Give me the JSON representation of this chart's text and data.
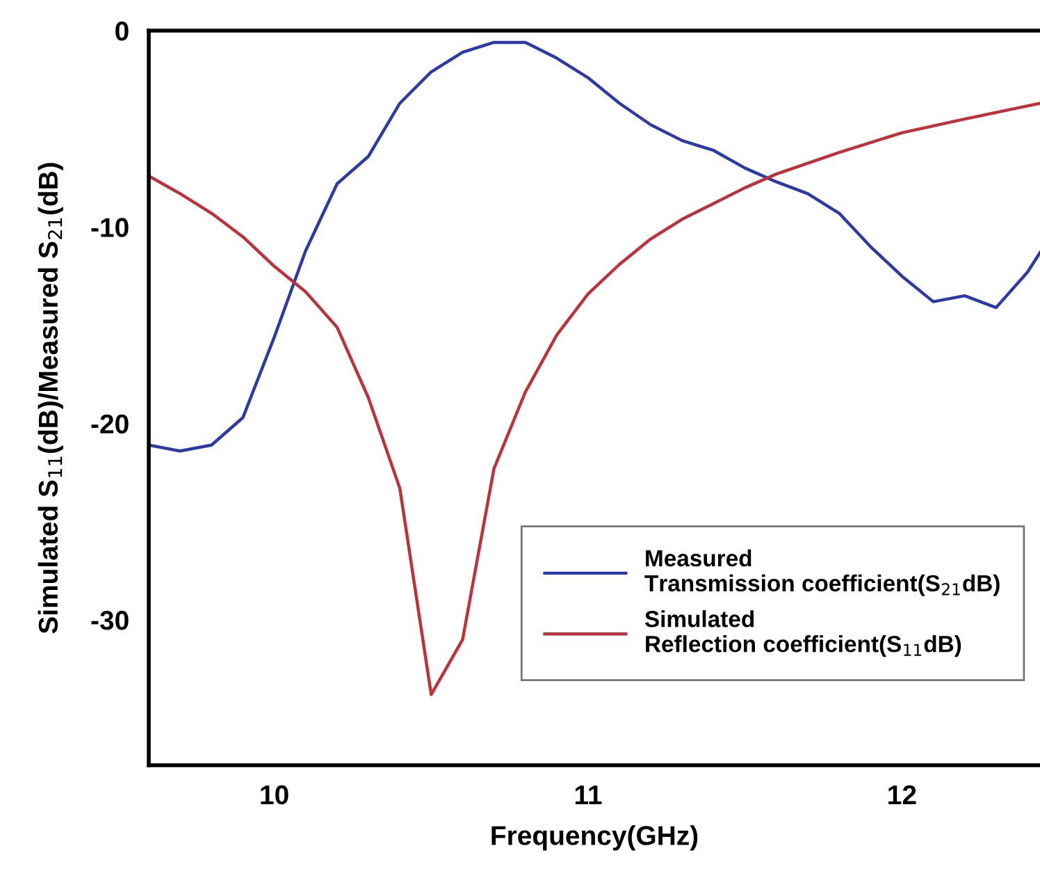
{
  "chart_data": {
    "type": "line",
    "xlabel": "Frequency(GHz)",
    "ylabel": "Simulated S$_{11}$(dB)/Measured S$_{21}$(dB)",
    "xlim": [
      9.6,
      12.44
    ],
    "xticks": [
      10,
      11,
      12
    ],
    "ylim": [
      -37.4,
      0
    ],
    "yticks": [
      0,
      -10,
      -20,
      -30
    ],
    "grid": false,
    "legend": "bottom right",
    "series": [
      {
        "name": "Measured\nTransmission coefficient(S$_{21}$dB)",
        "color": "#2b3aa8",
        "x": [
          9.6,
          9.7,
          9.8,
          9.9,
          10.0,
          10.1,
          10.2,
          10.3,
          10.4,
          10.5,
          10.6,
          10.7,
          10.8,
          10.9,
          11.0,
          11.1,
          11.2,
          11.3,
          11.4,
          11.5,
          11.6,
          11.7,
          11.8,
          11.9,
          12.0,
          12.1,
          12.2,
          12.3,
          12.4,
          12.44
        ],
        "values": [
          -21.1,
          -21.4,
          -21.1,
          -19.7,
          -15.6,
          -11.2,
          -7.8,
          -6.4,
          -3.7,
          -2.1,
          -1.1,
          -0.6,
          -0.6,
          -1.4,
          -2.4,
          -3.7,
          -4.8,
          -5.6,
          -6.1,
          -7.0,
          -7.7,
          -8.3,
          -9.3,
          -11.0,
          -12.5,
          -13.8,
          -13.5,
          -14.1,
          -12.3,
          -11.3
        ]
      },
      {
        "name": "Simulated\nReflection coefficient(S$_{11}$dB)",
        "color": "#c0303a",
        "x": [
          9.6,
          9.7,
          9.8,
          9.9,
          10.0,
          10.1,
          10.2,
          10.3,
          10.4,
          10.5,
          10.6,
          10.7,
          10.8,
          10.9,
          11.0,
          11.1,
          11.2,
          11.3,
          11.4,
          11.5,
          11.6,
          11.8,
          12.0,
          12.2,
          12.44
        ],
        "values": [
          -7.4,
          -8.3,
          -9.3,
          -10.5,
          -12.0,
          -13.3,
          -15.1,
          -18.7,
          -23.3,
          -33.8,
          -31.0,
          -22.3,
          -18.4,
          -15.5,
          -13.4,
          -11.9,
          -10.6,
          -9.6,
          -8.8,
          -8.0,
          -7.3,
          -6.2,
          -5.2,
          -4.5,
          -3.7
        ]
      }
    ]
  }
}
